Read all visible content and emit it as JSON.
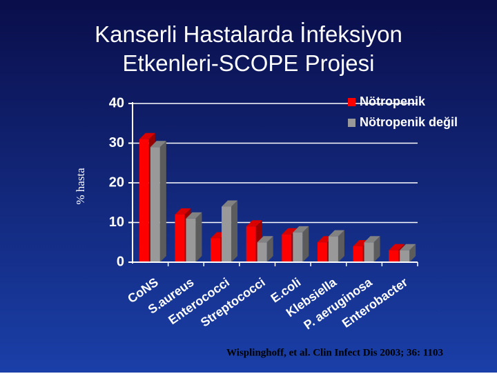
{
  "chart_data": {
    "type": "bar3d",
    "title": "Kanserli Hastalarda İnfeksiyon Etkenleri-SCOPE Projesi",
    "y_label": "% hasta",
    "source": "Wisplinghoff, et al. Clin Infect Dis 2003; 36: 1103",
    "categories": [
      "CoNS",
      "S.aureus",
      "Enterococci",
      "Streptococci",
      "E.coli",
      "Klebsiella",
      "P. aeruginosa",
      "Enterobacter"
    ],
    "series": [
      {
        "name": "Nötropenik",
        "color": "#ff0000",
        "values": [
          31,
          12,
          6,
          9,
          7,
          5,
          4,
          3
        ]
      },
      {
        "name": "Nötropenik değil",
        "color": "#999999",
        "values": [
          29,
          11,
          14,
          5,
          7.5,
          6.5,
          5,
          3
        ]
      }
    ],
    "ylim": [
      0,
      40
    ],
    "yticks": [
      0,
      10,
      20,
      30,
      40
    ],
    "grid": true,
    "legend": "top-right"
  }
}
